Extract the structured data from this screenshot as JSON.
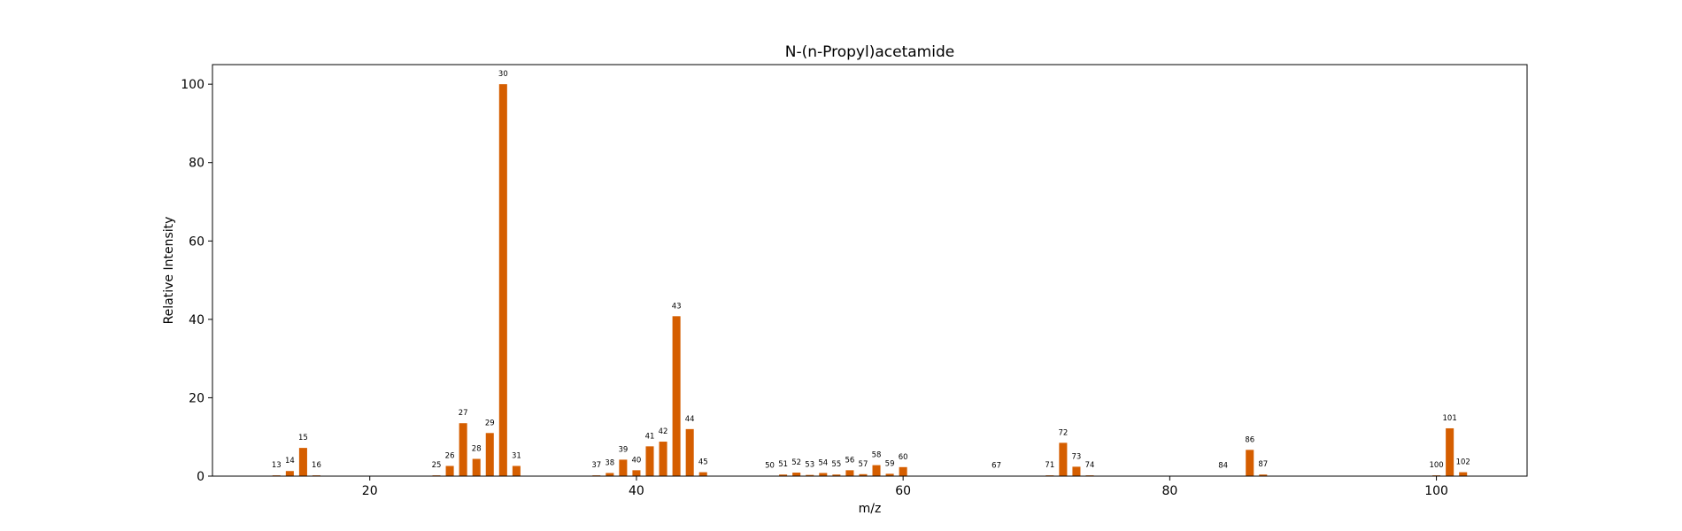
{
  "chart_data": {
    "type": "bar",
    "title": "N-(n-Propyl)acetamide",
    "xlabel": "m/z",
    "ylabel": "Relative Intensity",
    "xlim": [
      8.2,
      106.8
    ],
    "ylim": [
      0,
      105
    ],
    "xticks": [
      20,
      40,
      60,
      80,
      100
    ],
    "yticks": [
      0,
      20,
      40,
      60,
      80,
      100
    ],
    "grid": false,
    "bar_color": "#d55e00",
    "bar_width": 0.6,
    "x": [
      13,
      14,
      15,
      16,
      25,
      26,
      27,
      28,
      29,
      30,
      31,
      37,
      38,
      39,
      40,
      41,
      42,
      43,
      44,
      45,
      50,
      51,
      52,
      53,
      54,
      55,
      56,
      57,
      58,
      59,
      60,
      67,
      71,
      72,
      73,
      74,
      84,
      86,
      87,
      100,
      101,
      102
    ],
    "values": [
      0.2,
      1.3,
      7.2,
      0.2,
      0.2,
      2.6,
      13.5,
      4.4,
      11.0,
      100.0,
      2.6,
      0.2,
      0.8,
      4.2,
      1.5,
      7.6,
      8.8,
      40.8,
      12.0,
      1.0,
      0.1,
      0.4,
      0.9,
      0.3,
      0.8,
      0.4,
      1.5,
      0.5,
      2.8,
      0.6,
      2.3,
      0.1,
      0.2,
      8.5,
      2.4,
      0.2,
      0.1,
      6.7,
      0.4,
      0.2,
      12.2,
      1.0
    ],
    "labels": [
      "13",
      "14",
      "15",
      "16",
      "25",
      "26",
      "27",
      "28",
      "29",
      "30",
      "31",
      "37",
      "38",
      "39",
      "40",
      "41",
      "42",
      "43",
      "44",
      "45",
      "50",
      "51",
      "52",
      "53",
      "54",
      "55",
      "56",
      "57",
      "58",
      "59",
      "60",
      "67",
      "71",
      "72",
      "73",
      "74",
      "84",
      "86",
      "87",
      "100",
      "101",
      "102"
    ]
  }
}
